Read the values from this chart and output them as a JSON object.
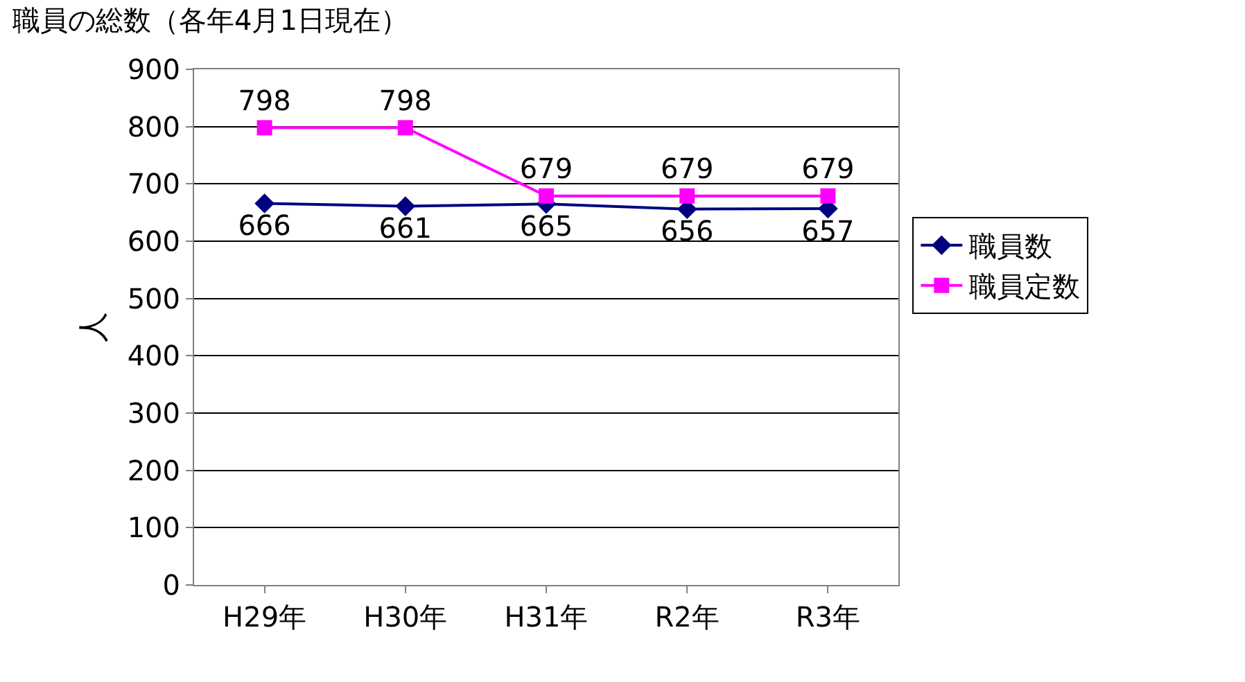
{
  "chart_data": {
    "type": "line",
    "title": "職員の総数（各年4月1日現在）",
    "ylabel": "人",
    "categories": [
      "H29年",
      "H30年",
      "H31年",
      "R2年",
      "R3年"
    ],
    "series": [
      {
        "name": "職員数",
        "color": "#000080",
        "values": [
          666,
          661,
          665,
          656,
          657
        ],
        "marker": "diamond"
      },
      {
        "name": "職員定数",
        "color": "#ff00ff",
        "values": [
          798,
          798,
          679,
          679,
          679
        ],
        "marker": "square"
      }
    ],
    "ylim": [
      0,
      900
    ],
    "yticks": [
      0,
      100,
      200,
      300,
      400,
      500,
      600,
      700,
      800,
      900
    ],
    "grid": "y",
    "legend": "right",
    "data_labels": true,
    "line_style": "solid"
  }
}
